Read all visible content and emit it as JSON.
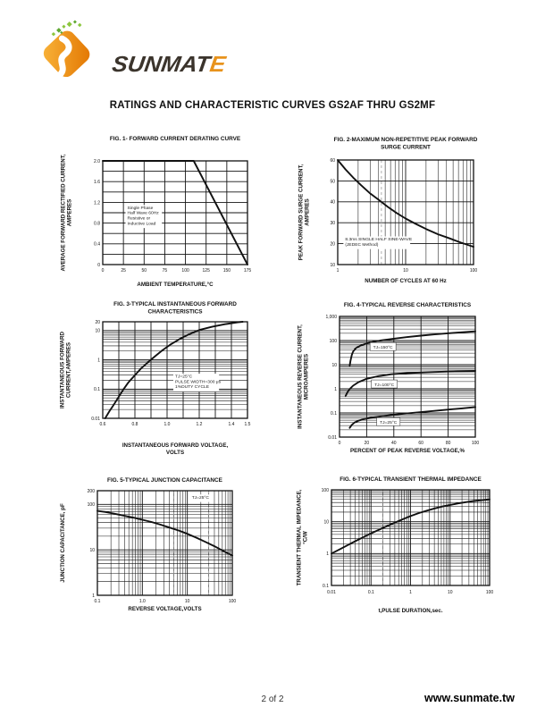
{
  "page": {
    "title": "RATINGS AND CHARACTERISTIC CURVES GS2AF THRU GS2MF",
    "footer": {
      "page_indicator": "2 of 2",
      "website": "www.sunmate.tw"
    },
    "logo": {
      "text_main": "SUNMAT",
      "text_accent": "E",
      "orange": "#ED8000",
      "orange_light": "#F9B43A",
      "green": "#8CC63E",
      "green_dark": "#5FA832",
      "ink": "#3B342C"
    }
  },
  "chart_data": [
    {
      "id": "fig1",
      "type": "line",
      "title": "FIG. 1- FORWARD CURRENT DERATING CURVE",
      "xlabel": "AMBIENT TEMPERATURE,°C",
      "ylabel": "AVERAGE FORWARD RECTIFIED CURRENT,\nAMPERES",
      "x": {
        "scale": "linear",
        "min": 0,
        "max": 175,
        "grid_step": 25,
        "ticks": [
          {
            "v": 0,
            "l": "0"
          },
          {
            "v": 25,
            "l": "25"
          },
          {
            "v": 50,
            "l": "50"
          },
          {
            "v": 75,
            "l": "75"
          },
          {
            "v": 100,
            "l": "100"
          },
          {
            "v": 125,
            "l": "125"
          },
          {
            "v": 150,
            "l": "150"
          },
          {
            "v": 175,
            "l": "175"
          }
        ]
      },
      "y": {
        "scale": "linear",
        "min": 0,
        "max": 2,
        "grid_step": 0.2,
        "ticks": [
          {
            "v": 0,
            "l": "0"
          },
          {
            "v": 0.4,
            "l": "0.4"
          },
          {
            "v": 0.8,
            "l": "0.8"
          },
          {
            "v": 1.2,
            "l": "1.2"
          },
          {
            "v": 1.6,
            "l": "1.6"
          },
          {
            "v": 2,
            "l": "2.0"
          }
        ]
      },
      "series": [
        {
          "name": "derating",
          "points": [
            [
              0,
              2
            ],
            [
              110,
              2
            ],
            [
              175,
              0
            ]
          ]
        }
      ],
      "annotations": [
        {
          "lines": [
            "Single Phase",
            "Half Wave 60Hz",
            "Resistive or",
            "Inductive Load"
          ],
          "fx": 0.17,
          "fy": 0.465
        }
      ]
    },
    {
      "id": "fig2",
      "type": "line",
      "title": "FIG. 2-MAXIMUM NON-REPETITIVE PEAK FORWARD\nSURGE CURRENT",
      "xlabel": "NUMBER OF CYCLES AT 60 Hz",
      "ylabel": "PEAK  FORWARD SURGE CURRENT,\nAMPERES",
      "x": {
        "scale": "log",
        "min": 1,
        "max": 100,
        "ticks": [
          {
            "v": 1,
            "l": "1"
          },
          {
            "v": 10,
            "l": "10"
          },
          {
            "v": 100,
            "l": "100"
          }
        ]
      },
      "y": {
        "scale": "linear",
        "min": 10,
        "max": 60,
        "grid_step": 10,
        "ticks": [
          {
            "v": 10,
            "l": "10"
          },
          {
            "v": 20,
            "l": "20"
          },
          {
            "v": 30,
            "l": "30"
          },
          {
            "v": 40,
            "l": "40"
          },
          {
            "v": 50,
            "l": "50"
          },
          {
            "v": 60,
            "l": "60"
          }
        ]
      },
      "dashed_x": [
        4.4
      ],
      "series": [
        {
          "name": "surge",
          "points": [
            [
              1,
              60
            ],
            [
              1.3,
              55.5
            ],
            [
              1.7,
              51.5
            ],
            [
              2.2,
              48
            ],
            [
              3,
              44
            ],
            [
              4,
              41
            ],
            [
              5.5,
              37.5
            ],
            [
              7.5,
              34.5
            ],
            [
              10,
              32
            ],
            [
              14,
              29.5
            ],
            [
              20,
              27
            ],
            [
              30,
              24.5
            ],
            [
              45,
              22.5
            ],
            [
              65,
              20.5
            ],
            [
              100,
              18.5
            ]
          ]
        }
      ],
      "annotations": [
        {
          "lines": [
            "8.3ms SINGLE HALF SINE-WAVE",
            "(JEDEC Method)"
          ],
          "fx": 0.055,
          "fy": 0.77
        }
      ]
    },
    {
      "id": "fig3",
      "type": "line",
      "title": "FIG. 3-TYPICAL INSTANTANEOUS FORWARD\nCHARACTERISTICS",
      "xlabel": "INSTANTANEOUS FORWARD VOLTAGE,\nVOLTS",
      "ylabel": "INSTANTANEOUS FORWARD\nCURRENT,AMPERES",
      "x": {
        "scale": "linear",
        "min": 0.6,
        "max": 1.5,
        "grid_step": 0.1,
        "ticks": [
          {
            "v": 0.6,
            "l": "0.6"
          },
          {
            "v": 0.8,
            "l": "0.8"
          },
          {
            "v": 1.0,
            "l": "1.0"
          },
          {
            "v": 1.2,
            "l": "1.2"
          },
          {
            "v": 1.4,
            "l": "1.4"
          },
          {
            "v": 1.5,
            "l": "1.5"
          }
        ]
      },
      "y": {
        "scale": "log",
        "min": 0.01,
        "max": 20,
        "ticks": [
          {
            "v": 20,
            "l": "20"
          },
          {
            "v": 10,
            "l": "10"
          },
          {
            "v": 1,
            "l": "1"
          },
          {
            "v": 0.1,
            "l": "0.1"
          },
          {
            "v": 0.01,
            "l": "0.01"
          }
        ]
      },
      "series": [
        {
          "name": "forward",
          "points": [
            [
              0.615,
              0.01
            ],
            [
              0.64,
              0.017
            ],
            [
              0.67,
              0.03
            ],
            [
              0.7,
              0.055
            ],
            [
              0.73,
              0.1
            ],
            [
              0.76,
              0.17
            ],
            [
              0.8,
              0.3
            ],
            [
              0.84,
              0.52
            ],
            [
              0.88,
              0.82
            ],
            [
              0.92,
              1.25
            ],
            [
              0.97,
              2.1
            ],
            [
              1.02,
              3.3
            ],
            [
              1.08,
              5.2
            ],
            [
              1.14,
              7.6
            ],
            [
              1.2,
              10.5
            ],
            [
              1.28,
              13.5
            ],
            [
              1.36,
              16.5
            ],
            [
              1.44,
              19.2
            ],
            [
              1.47,
              20
            ]
          ]
        }
      ],
      "annotations": [
        {
          "lines": [
            "TJ=25°C",
            "PULSE WIDTH=300 μs",
            "1%DUTY CYCLE"
          ],
          "fx": 0.5,
          "fy": 0.58
        }
      ]
    },
    {
      "id": "fig4",
      "type": "line",
      "title": "FIG. 4-TYPICAL REVERSE CHARACTERISTICS",
      "xlabel": "PERCENT OF PEAK REVERSE VOLTAGE,%",
      "ylabel": "INSTANTANEOUS REVERSE CURRENT,\nMICROAMPERES",
      "x": {
        "scale": "linear",
        "min": 0,
        "max": 100,
        "grid_step": 20,
        "ticks": [
          {
            "v": 0,
            "l": "0"
          },
          {
            "v": 20,
            "l": "20"
          },
          {
            "v": 40,
            "l": "40"
          },
          {
            "v": 60,
            "l": "60"
          },
          {
            "v": 80,
            "l": "80"
          },
          {
            "v": 100,
            "l": "100"
          }
        ]
      },
      "y": {
        "scale": "log",
        "min": 0.01,
        "max": 1000,
        "ticks": [
          {
            "v": 1000,
            "l": "1,000"
          },
          {
            "v": 100,
            "l": "100"
          },
          {
            "v": 10,
            "l": "10"
          },
          {
            "v": 1,
            "l": "1"
          },
          {
            "v": 0.1,
            "l": "0.1"
          },
          {
            "v": 0.01,
            "l": "0.01"
          }
        ]
      },
      "series": [
        {
          "name": "tj150",
          "label": "TJ=150°C",
          "label_at": [
            32,
            55
          ],
          "points": [
            [
              7.5,
              9
            ],
            [
              8,
              14
            ],
            [
              9,
              25
            ],
            [
              10,
              35
            ],
            [
              12,
              48
            ],
            [
              15,
              60
            ],
            [
              20,
              76
            ],
            [
              25,
              89
            ],
            [
              30,
              100
            ],
            [
              40,
              120
            ],
            [
              50,
              140
            ],
            [
              60,
              160
            ],
            [
              70,
              180
            ],
            [
              85,
              210
            ],
            [
              100,
              240
            ]
          ]
        },
        {
          "name": "tj100",
          "label": "TJ=100°C",
          "label_at": [
            33,
            1.55
          ],
          "points": [
            [
              4.5,
              0.5
            ],
            [
              6,
              0.75
            ],
            [
              8,
              1.05
            ],
            [
              10,
              1.35
            ],
            [
              14,
              1.9
            ],
            [
              20,
              2.6
            ],
            [
              28,
              3.3
            ],
            [
              38,
              4.0
            ],
            [
              50,
              4.5
            ],
            [
              65,
              4.9
            ],
            [
              80,
              5.2
            ],
            [
              100,
              5.5
            ]
          ]
        },
        {
          "name": "tj25",
          "label": "TJ=25°C",
          "label_at": [
            36,
            0.042
          ],
          "points": [
            [
              7.5,
              0.024
            ],
            [
              9,
              0.032
            ],
            [
              11,
              0.04
            ],
            [
              14,
              0.048
            ],
            [
              18,
              0.056
            ],
            [
              25,
              0.066
            ],
            [
              35,
              0.078
            ],
            [
              45,
              0.09
            ],
            [
              60,
              0.108
            ],
            [
              75,
              0.13
            ],
            [
              90,
              0.155
            ],
            [
              100,
              0.175
            ]
          ]
        }
      ],
      "annotations": []
    },
    {
      "id": "fig5",
      "type": "line",
      "title": "FIG. 5-TYPICAL JUNCTION CAPACITANCE",
      "xlabel": "REVERSE VOLTAGE,VOLTS",
      "ylabel": "JUNCTION CAPACITANCE, pF",
      "x": {
        "scale": "log",
        "min": 0.1,
        "max": 100,
        "ticks": [
          {
            "v": 0.1,
            "l": "0.1"
          },
          {
            "v": 1,
            "l": "1.0"
          },
          {
            "v": 10,
            "l": "10"
          },
          {
            "v": 100,
            "l": "100"
          }
        ]
      },
      "y": {
        "scale": "log",
        "min": 1,
        "max": 200,
        "ticks": [
          {
            "v": 200,
            "l": "200"
          },
          {
            "v": 100,
            "l": "100"
          },
          {
            "v": 10,
            "l": "10"
          },
          {
            "v": 1,
            "l": "1"
          }
        ]
      },
      "dashed_x": [
        5,
        30
      ],
      "series": [
        {
          "name": "capacitance",
          "points": [
            [
              0.1,
              72
            ],
            [
              0.15,
              68
            ],
            [
              0.25,
              62
            ],
            [
              0.4,
              56
            ],
            [
              0.7,
              50
            ],
            [
              1,
              46
            ],
            [
              1.6,
              41
            ],
            [
              2.5,
              36
            ],
            [
              4,
              31
            ],
            [
              6.5,
              26.5
            ],
            [
              10,
              22.5
            ],
            [
              16,
              18.5
            ],
            [
              25,
              15
            ],
            [
              40,
              12
            ],
            [
              65,
              9.3
            ],
            [
              100,
              7.5
            ]
          ]
        }
      ],
      "annotations": [
        {
          "lines": [
            "TJ=25°C"
          ],
          "fx": 0.7,
          "fy": 0.075
        }
      ]
    },
    {
      "id": "fig6",
      "type": "line",
      "title": "FIG. 6-TYPICAL TRANSIENT THERMAL IMPEDANCE",
      "xlabel": "t,PULSE DURATION,sec.",
      "ylabel": "TRANSIENT THERMAL IMPEDANCE,\n°C/W",
      "x": {
        "scale": "log",
        "min": 0.01,
        "max": 100,
        "ticks": [
          {
            "v": 0.01,
            "l": "0.01"
          },
          {
            "v": 0.1,
            "l": "0.1"
          },
          {
            "v": 1,
            "l": "1"
          },
          {
            "v": 10,
            "l": "10"
          },
          {
            "v": 100,
            "l": "100"
          }
        ]
      },
      "y": {
        "scale": "log",
        "min": 0.1,
        "max": 100,
        "ticks": [
          {
            "v": 100,
            "l": "100"
          },
          {
            "v": 10,
            "l": "10"
          },
          {
            "v": 1,
            "l": "1"
          },
          {
            "v": 0.1,
            "l": "0.1"
          }
        ]
      },
      "dashed_x": [
        0.2
      ],
      "series": [
        {
          "name": "thermal",
          "points": [
            [
              0.01,
              1
            ],
            [
              0.016,
              1.35
            ],
            [
              0.025,
              1.8
            ],
            [
              0.04,
              2.45
            ],
            [
              0.065,
              3.3
            ],
            [
              0.1,
              4.3
            ],
            [
              0.16,
              5.6
            ],
            [
              0.25,
              7.2
            ],
            [
              0.4,
              9.3
            ],
            [
              0.65,
              12
            ],
            [
              1,
              15
            ],
            [
              1.6,
              18.5
            ],
            [
              2.5,
              22
            ],
            [
              4,
              26
            ],
            [
              6.5,
              30
            ],
            [
              10,
              33.5
            ],
            [
              16,
              37.5
            ],
            [
              25,
              41
            ],
            [
              40,
              44.5
            ],
            [
              65,
              47.5
            ],
            [
              100,
              50
            ]
          ]
        }
      ],
      "annotations": []
    }
  ]
}
